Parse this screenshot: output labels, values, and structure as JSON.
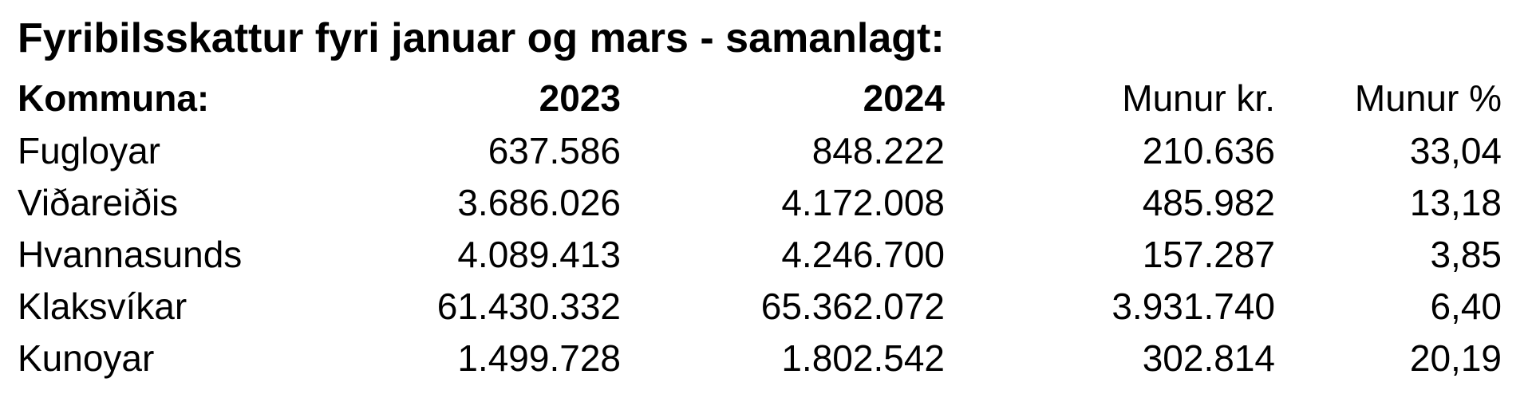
{
  "title": "Fyribilsskattur fyri januar og mars - samanlagt:",
  "table": {
    "header": [
      "Kommuna:",
      "2023",
      "2024",
      "Munur kr.",
      "Munur %"
    ],
    "rows": [
      [
        "Fugloyar",
        "637.586",
        "848.222",
        "210.636",
        "33,04"
      ],
      [
        "Viðareiðis",
        "3.686.026",
        "4.172.008",
        "485.982",
        "13,18"
      ],
      [
        "Hvannasunds",
        "4.089.413",
        "4.246.700",
        "157.287",
        "3,85"
      ],
      [
        "Klaksvíkar",
        "61.430.332",
        "65.362.072",
        "3.931.740",
        "6,40"
      ],
      [
        "Kunoyar",
        "1.499.728",
        "1.802.542",
        "302.814",
        "20,19"
      ]
    ]
  }
}
